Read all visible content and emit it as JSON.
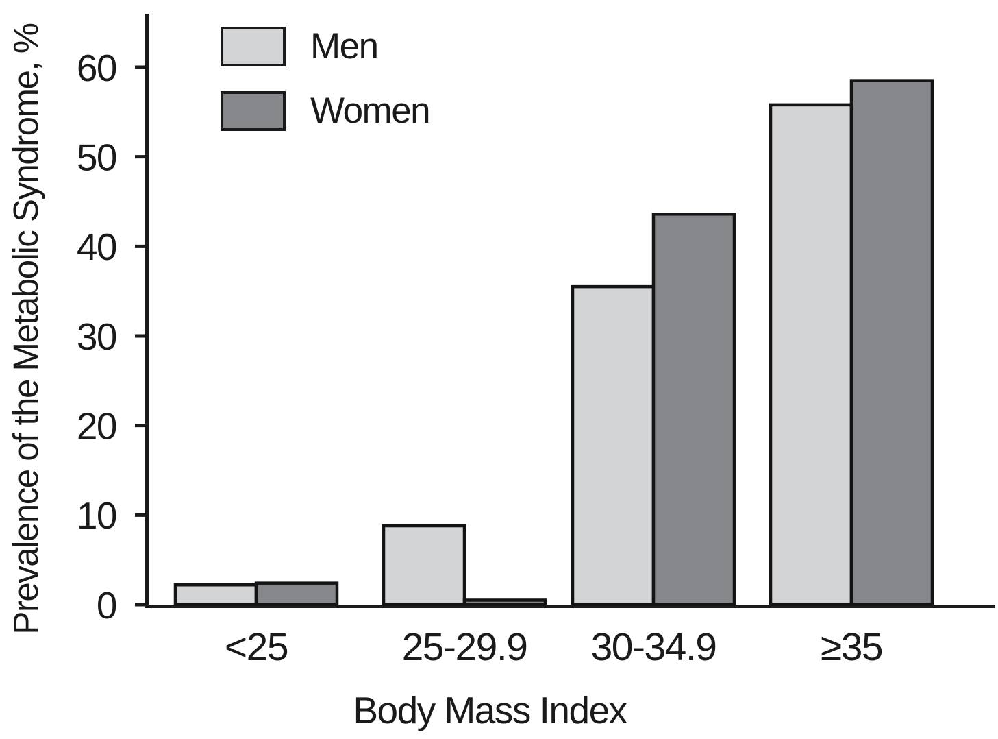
{
  "chart_data": {
    "type": "bar",
    "title": "",
    "categories": [
      "<25",
      "25-29.9",
      "30-34.9",
      "≥35"
    ],
    "series": [
      {
        "name": "Men",
        "color": "#d3d4d5",
        "values": [
          2.2,
          8.8,
          35.5,
          55.8
        ]
      },
      {
        "name": "Women",
        "color": "#85878a",
        "values": [
          2.4,
          0.5,
          43.6,
          58.5
        ]
      }
    ],
    "xlabel": "Body Mass Index",
    "ylabel": "Prevalence of the Metabolic Syndrome, %",
    "yticks": [
      0,
      10,
      20,
      30,
      40,
      50,
      60
    ],
    "ylim": [
      0,
      66
    ],
    "grid": false,
    "legend_position": "top-left",
    "axis_color": "#1a1a1a",
    "bar_outline_color": "#141414",
    "background": "#ffffff"
  }
}
